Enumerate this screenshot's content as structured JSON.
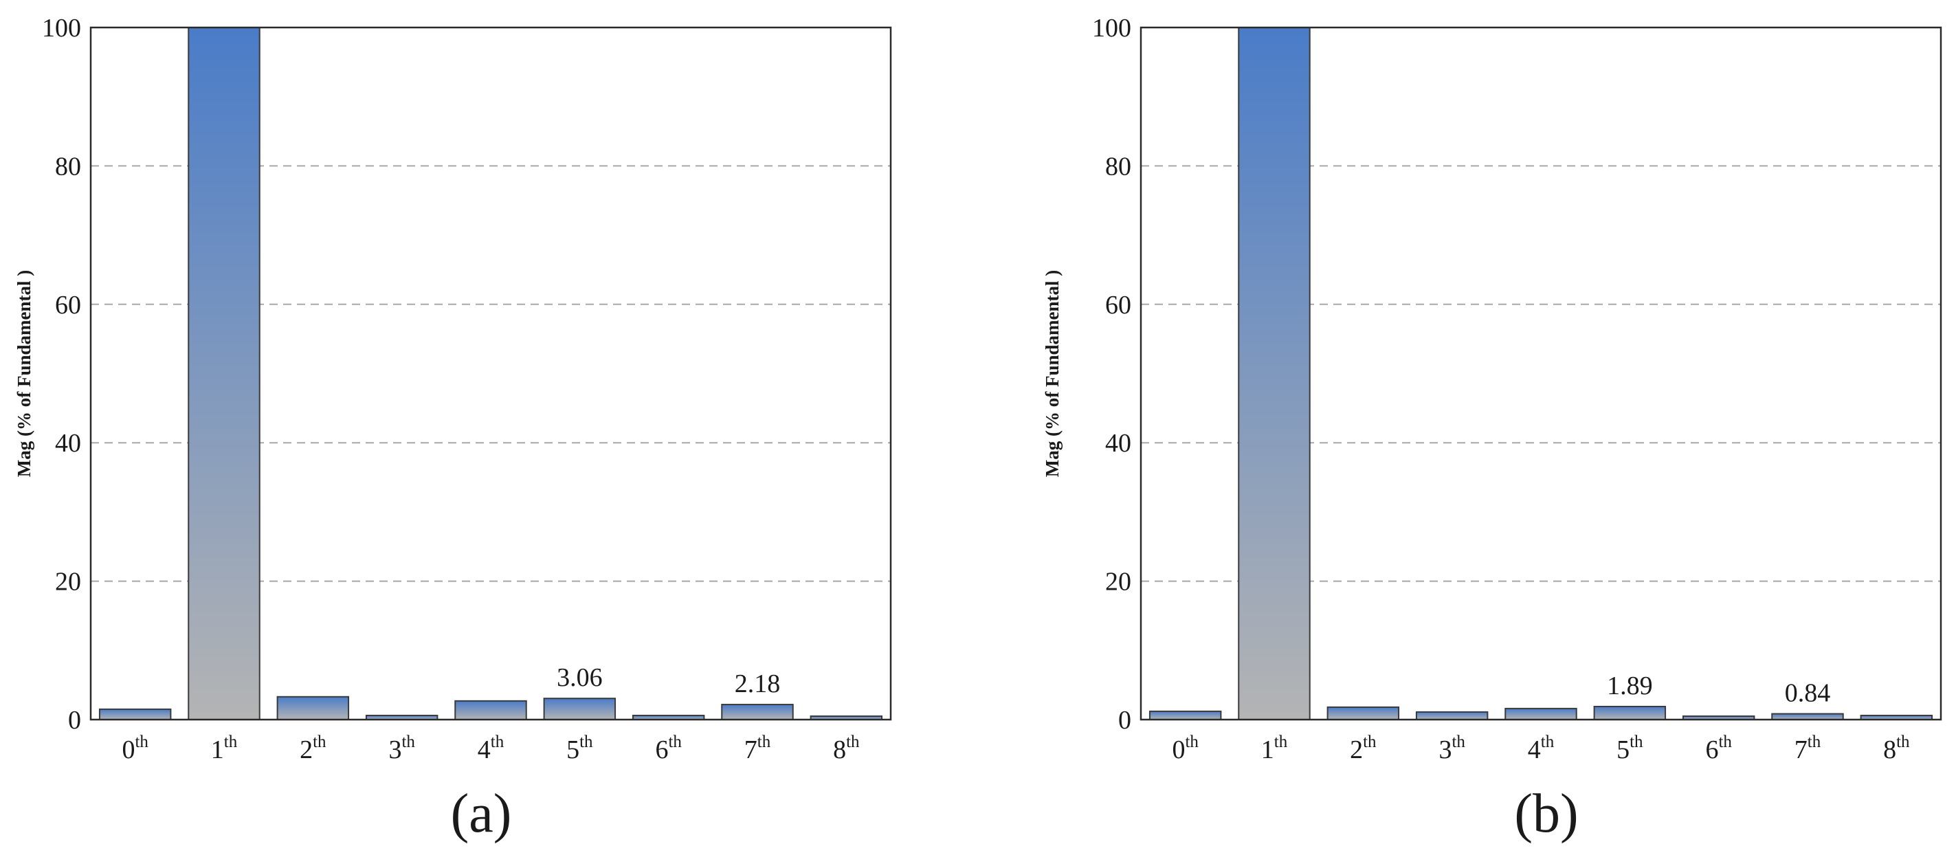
{
  "chart_data": [
    {
      "type": "bar",
      "panel_label": "(a)",
      "ylabel": "Mag (% of Fundamental )",
      "ylim": [
        0,
        100
      ],
      "yticks": [
        0,
        20,
        40,
        60,
        80,
        100
      ],
      "grid": true,
      "categories": [
        {
          "base": "0",
          "sup": "th"
        },
        {
          "base": "1",
          "sup": "th"
        },
        {
          "base": "2",
          "sup": "th"
        },
        {
          "base": "3",
          "sup": "th"
        },
        {
          "base": "4",
          "sup": "th"
        },
        {
          "base": "5",
          "sup": "th"
        },
        {
          "base": "6",
          "sup": "th"
        },
        {
          "base": "7",
          "sup": "th"
        },
        {
          "base": "8",
          "sup": "th"
        }
      ],
      "values": [
        1.5,
        100,
        3.3,
        0.6,
        2.7,
        3.06,
        0.6,
        2.18,
        0.5
      ],
      "data_labels": [
        {
          "index": 5,
          "text": "3.06"
        },
        {
          "index": 7,
          "text": "2.18"
        }
      ]
    },
    {
      "type": "bar",
      "panel_label": "(b)",
      "ylabel": "Mag (% of Fundamental )",
      "ylim": [
        0,
        100
      ],
      "yticks": [
        0,
        20,
        40,
        60,
        80,
        100
      ],
      "grid": true,
      "categories": [
        {
          "base": "0",
          "sup": "th"
        },
        {
          "base": "1",
          "sup": "th"
        },
        {
          "base": "2",
          "sup": "th"
        },
        {
          "base": "3",
          "sup": "th"
        },
        {
          "base": "4",
          "sup": "th"
        },
        {
          "base": "5",
          "sup": "th"
        },
        {
          "base": "6",
          "sup": "th"
        },
        {
          "base": "7",
          "sup": "th"
        },
        {
          "base": "8",
          "sup": "th"
        }
      ],
      "values": [
        1.2,
        100,
        1.8,
        1.1,
        1.6,
        1.89,
        0.5,
        0.84,
        0.6
      ],
      "data_labels": [
        {
          "index": 5,
          "text": "1.89"
        },
        {
          "index": 7,
          "text": "0.84"
        }
      ]
    }
  ],
  "colors": {
    "bar_top": "#4a7cc8",
    "bar_bottom": "#b4b4b4",
    "grid": "#a8a8a8",
    "frame": "#2a2a2a"
  }
}
